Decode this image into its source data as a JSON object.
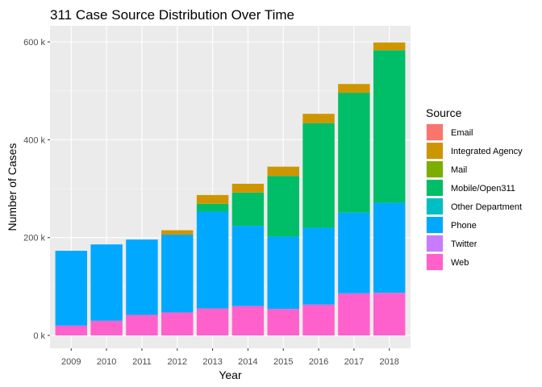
{
  "chart_data": {
    "type": "bar",
    "stacked": true,
    "title": "311 Case Source Distribution Over Time",
    "xlabel": "Year",
    "ylabel": "Number of Cases",
    "categories": [
      "2009",
      "2010",
      "2011",
      "2012",
      "2013",
      "2014",
      "2015",
      "2016",
      "2017",
      "2018"
    ],
    "ylim": [
      0,
      630000
    ],
    "yticks": [
      0,
      200000,
      400000,
      600000
    ],
    "ytick_labels": [
      "0 k",
      "200 k",
      "400 k",
      "600 k"
    ],
    "grid": true,
    "legend": {
      "title": "Source",
      "position": "right"
    },
    "series": [
      {
        "name": "Web",
        "color": "#FF61CC",
        "values": [
          20000,
          30000,
          42000,
          47000,
          55000,
          60000,
          54000,
          63000,
          86000,
          87000
        ]
      },
      {
        "name": "Twitter",
        "color": "#C77CFF",
        "values": [
          0,
          0,
          0,
          0,
          0,
          0,
          0,
          0,
          0,
          0
        ]
      },
      {
        "name": "Phone",
        "color": "#00A9FF",
        "values": [
          153000,
          156000,
          154000,
          159000,
          198000,
          164000,
          148000,
          157000,
          165000,
          184000
        ]
      },
      {
        "name": "Other Department",
        "color": "#00BFC4",
        "values": [
          0,
          0,
          0,
          0,
          0,
          0,
          0,
          0,
          0,
          0
        ]
      },
      {
        "name": "Mobile/Open311",
        "color": "#00BE67",
        "values": [
          0,
          0,
          0,
          0,
          16000,
          68000,
          124000,
          214000,
          245000,
          312000
        ]
      },
      {
        "name": "Mail",
        "color": "#7CAE00",
        "values": [
          0,
          0,
          0,
          0,
          0,
          0,
          0,
          0,
          0,
          0
        ]
      },
      {
        "name": "Integrated Agency",
        "color": "#CD9600",
        "values": [
          0,
          0,
          0,
          9000,
          18000,
          18000,
          19000,
          19000,
          18000,
          16000
        ]
      },
      {
        "name": "Email",
        "color": "#F8766D",
        "values": [
          0,
          0,
          0,
          0,
          0,
          0,
          0,
          0,
          0,
          0
        ]
      }
    ],
    "legend_order": [
      "Email",
      "Integrated Agency",
      "Mail",
      "Mobile/Open311",
      "Other Department",
      "Phone",
      "Twitter",
      "Web"
    ]
  }
}
